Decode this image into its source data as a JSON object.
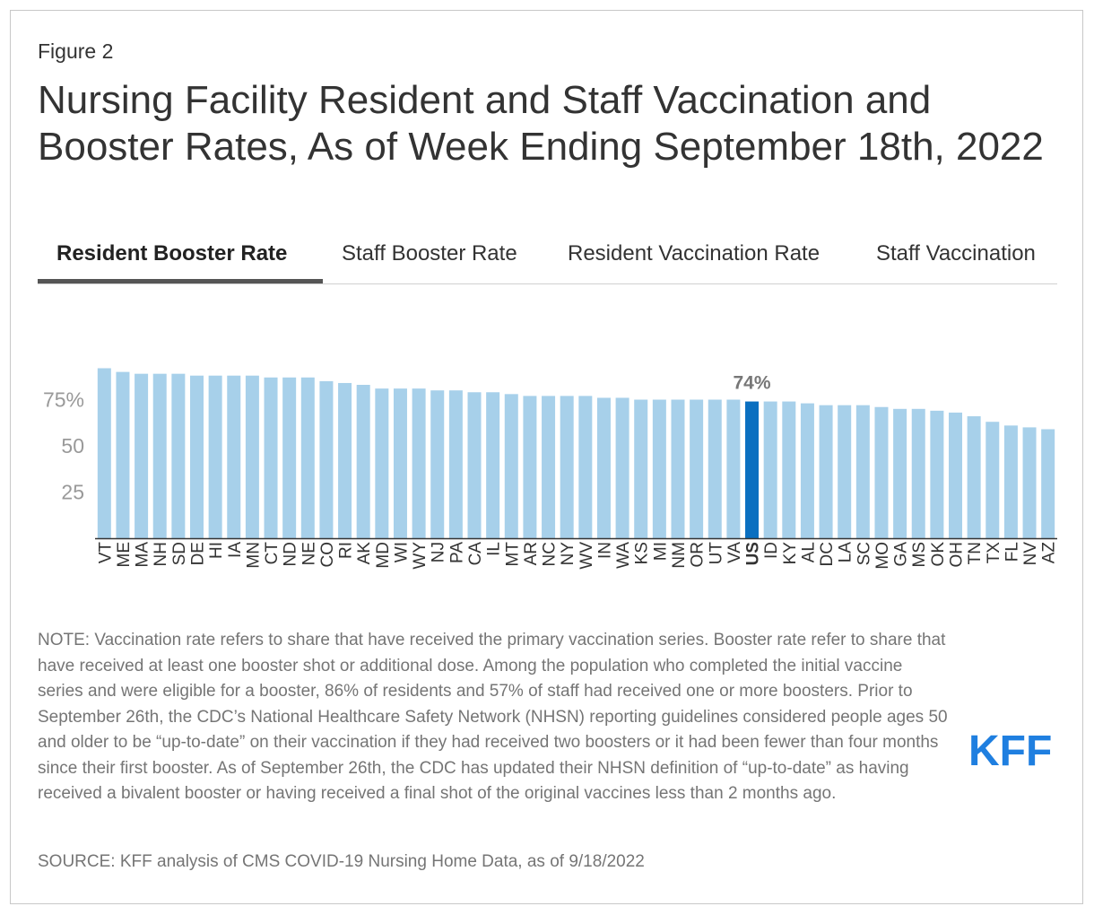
{
  "figure_label": "Figure 2",
  "title": "Nursing Facility Resident and Staff Vaccination and Booster Rates, As of Week Ending September 18th, 2022",
  "tabs": [
    {
      "label": "Resident Booster Rate",
      "active": true
    },
    {
      "label": "Staff Booster Rate",
      "active": false
    },
    {
      "label": "Resident Vaccination Rate",
      "active": false
    },
    {
      "label": "Staff Vaccination",
      "active": false
    }
  ],
  "note": "NOTE: Vaccination rate refers to share that have received the primary vaccination series. Booster rate refer to share that have received at least one booster shot or additional dose. Among the population who completed the initial vaccine series and were eligible for a booster, 86% of residents and 57% of staff had received one or more boosters. Prior to September 26th, the CDC’s National Healthcare Safety Network (NHSN) reporting guidelines considered people ages 50 and older to be “up-to-date” on their vaccination if they had received two boosters or it had been fewer than four months since their first booster. As of September 26th, the CDC has updated their NHSN definition of “up-to-date” as having received a bivalent booster or having received a final shot of the original vaccines less than 2 months ago.",
  "source": "SOURCE: KFF analysis of CMS COVID-19 Nursing Home Data, as of 9/18/2022",
  "logo_text": "KFF",
  "colors": {
    "bar": "#a7d0ea",
    "highlight": "#0a6fc0",
    "logo": "#1f7fe0",
    "axis": "#333333",
    "tick_text": "#999999"
  },
  "chart_data": {
    "type": "bar",
    "title": "",
    "xlabel": "",
    "ylabel": "",
    "ylim": [
      0,
      100
    ],
    "y_ticks": [
      {
        "value": 25,
        "label": "25"
      },
      {
        "value": 50,
        "label": "50"
      },
      {
        "value": 75,
        "label": "75%"
      }
    ],
    "categories": [
      "VT",
      "ME",
      "MA",
      "NH",
      "SD",
      "DE",
      "HI",
      "IA",
      "MN",
      "CT",
      "ND",
      "NE",
      "CO",
      "RI",
      "AK",
      "MD",
      "WI",
      "WY",
      "NJ",
      "PA",
      "CA",
      "IL",
      "MT",
      "AR",
      "NC",
      "NY",
      "WV",
      "IN",
      "WA",
      "KS",
      "MI",
      "NM",
      "OR",
      "UT",
      "VA",
      "US",
      "ID",
      "KY",
      "AL",
      "DC",
      "LA",
      "SC",
      "MO",
      "GA",
      "MS",
      "OK",
      "OH",
      "TN",
      "TX",
      "FL",
      "NV",
      "AZ"
    ],
    "values": [
      92,
      90,
      89,
      89,
      89,
      88,
      88,
      88,
      88,
      87,
      87,
      87,
      85,
      84,
      83,
      81,
      81,
      81,
      80,
      80,
      79,
      79,
      78,
      77,
      77,
      77,
      77,
      76,
      76,
      75,
      75,
      75,
      75,
      75,
      75,
      74,
      74,
      74,
      73,
      72,
      72,
      72,
      71,
      70,
      70,
      69,
      68,
      66,
      63,
      61,
      60,
      59
    ],
    "highlight": "US",
    "highlight_label": "74%"
  }
}
